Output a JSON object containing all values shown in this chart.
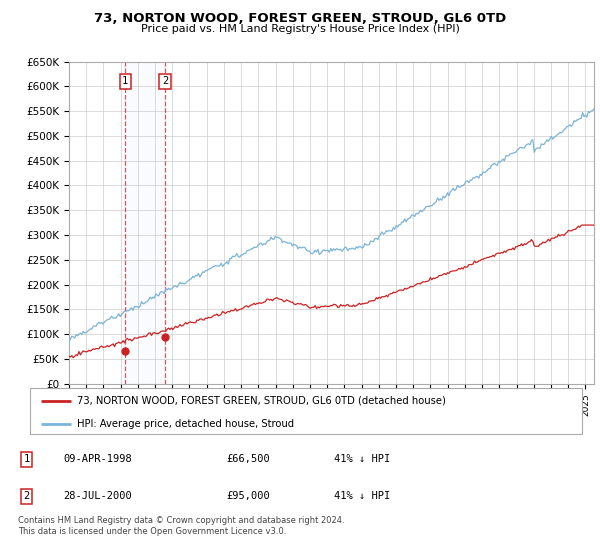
{
  "title": "73, NORTON WOOD, FOREST GREEN, STROUD, GL6 0TD",
  "subtitle": "Price paid vs. HM Land Registry's House Price Index (HPI)",
  "ylim": [
    0,
    650000
  ],
  "yticks": [
    0,
    50000,
    100000,
    150000,
    200000,
    250000,
    300000,
    350000,
    400000,
    450000,
    500000,
    550000,
    600000,
    650000
  ],
  "ytick_labels": [
    "£0",
    "£50K",
    "£100K",
    "£150K",
    "£200K",
    "£250K",
    "£300K",
    "£350K",
    "£400K",
    "£450K",
    "£500K",
    "£550K",
    "£600K",
    "£650K"
  ],
  "sale1_date": 1998.27,
  "sale1_price": 66500,
  "sale1_label": "1",
  "sale2_date": 2000.57,
  "sale2_price": 95000,
  "sale2_label": "2",
  "hpi_color": "#7ab4d8",
  "price_color": "#cc2222",
  "sale_marker_color": "#cc2222",
  "grid_color": "#cccccc",
  "plot_bg": "#ffffff",
  "legend_line1": "73, NORTON WOOD, FOREST GREEN, STROUD, GL6 0TD (detached house)",
  "legend_line2": "HPI: Average price, detached house, Stroud",
  "table_row1": [
    "1",
    "09-APR-1998",
    "£66,500",
    "41% ↓ HPI"
  ],
  "table_row2": [
    "2",
    "28-JUL-2000",
    "£95,000",
    "41% ↓ HPI"
  ],
  "footnote": "Contains HM Land Registry data © Crown copyright and database right 2024.\nThis data is licensed under the Open Government Licence v3.0.",
  "xmin": 1995.0,
  "xmax": 2025.5
}
